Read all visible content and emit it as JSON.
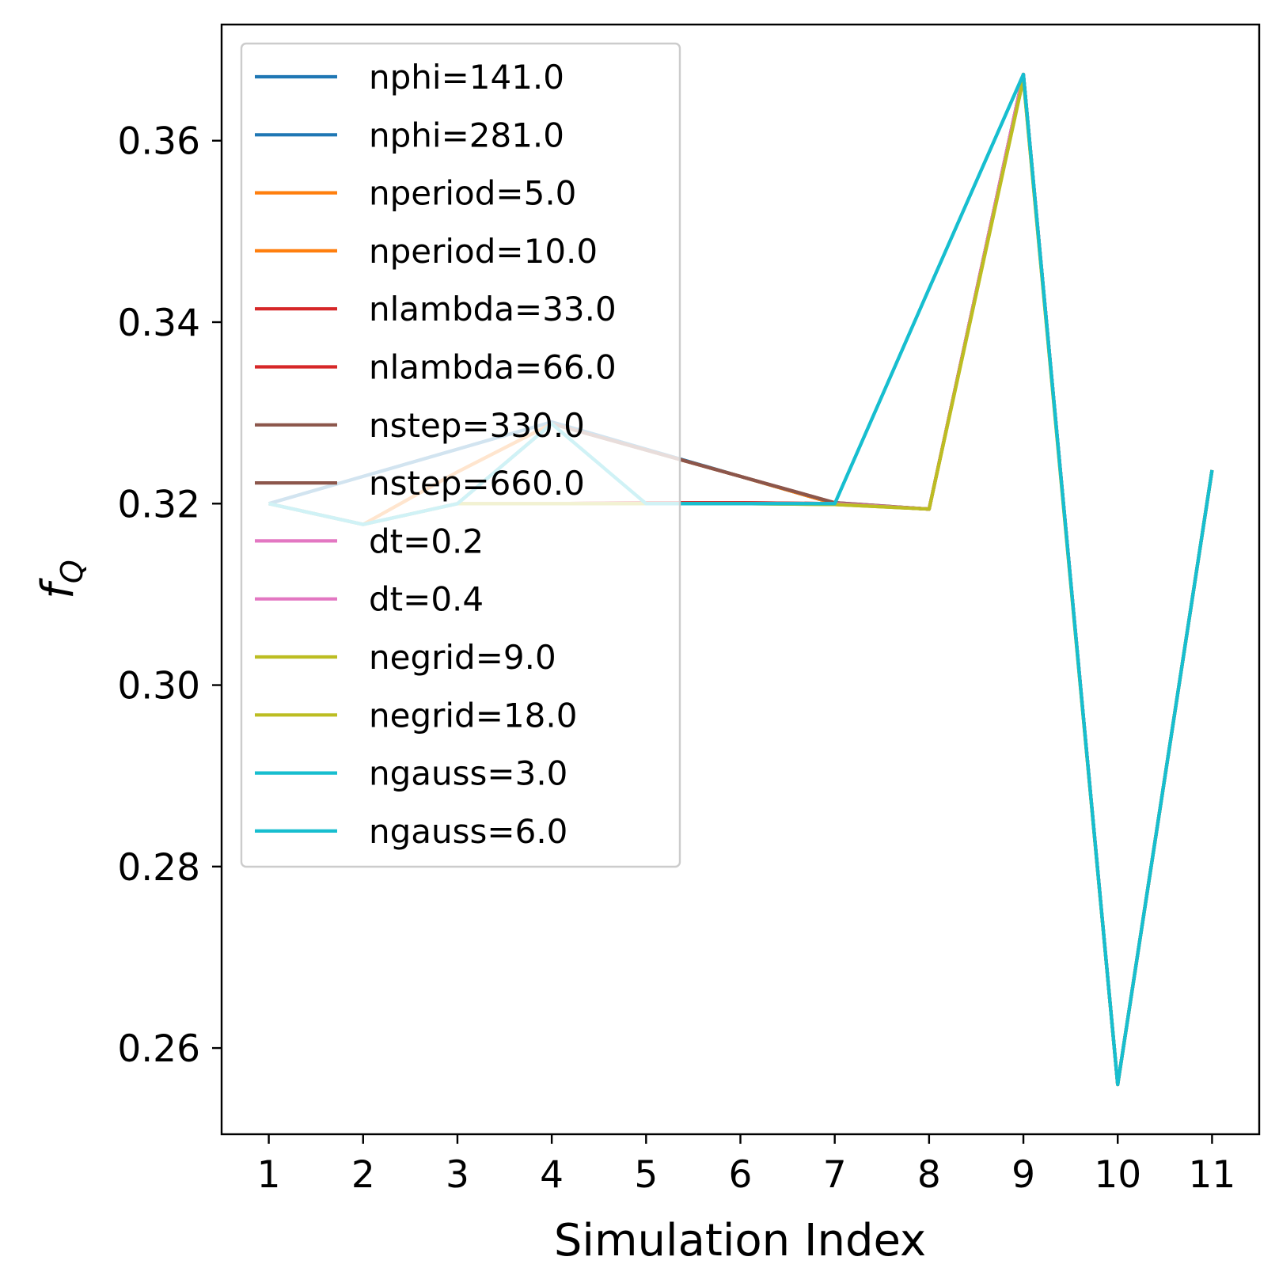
{
  "chart_data": {
    "type": "line",
    "title": "",
    "xlabel": "Simulation Index",
    "ylabel": "f",
    "ylabel_subscript": "Q",
    "xlim": [
      0.5,
      11.5
    ],
    "ylim": [
      0.2505,
      0.3728
    ],
    "x_ticks": [
      1,
      2,
      3,
      4,
      5,
      6,
      7,
      8,
      9,
      10,
      11
    ],
    "x_tick_labels": [
      "1",
      "2",
      "3",
      "4",
      "5",
      "6",
      "7",
      "8",
      "9",
      "10",
      "11"
    ],
    "y_ticks": [
      0.26,
      0.28,
      0.3,
      0.32,
      0.34,
      0.36
    ],
    "y_tick_labels": [
      "0.26",
      "0.28",
      "0.30",
      "0.32",
      "0.34",
      "0.36"
    ],
    "grid": false,
    "legend_position": "upper-left",
    "x": [
      1,
      2,
      3,
      4,
      5,
      6,
      7,
      8,
      9,
      10,
      11
    ],
    "series": [
      {
        "name": "nphi=141.0",
        "color": "#1f77b4",
        "values": [
          0.32,
          0.323,
          0.326,
          0.329,
          0.326,
          0.323,
          0.32,
          0.3194,
          0.3673,
          0.256,
          0.3237
        ]
      },
      {
        "name": "nphi=281.0",
        "color": "#1f77b4",
        "values": [
          0.32,
          0.323,
          0.326,
          0.329,
          0.326,
          0.323,
          0.32,
          0.3194,
          0.3673,
          0.256,
          0.3237
        ]
      },
      {
        "name": "nperiod=5.0",
        "color": "#ff7f0e",
        "values": [
          0.32,
          0.3177,
          0.3235,
          0.3288,
          0.3259,
          0.323,
          0.32,
          0.3194,
          0.3673,
          0.256,
          0.3237
        ]
      },
      {
        "name": "nperiod=10.0",
        "color": "#ff7f0e",
        "values": [
          0.32,
          0.3177,
          0.3235,
          0.3288,
          0.3259,
          0.323,
          0.32,
          0.3194,
          0.3673,
          0.256,
          0.3237
        ]
      },
      {
        "name": "nlambda=33.0",
        "color": "#d62728",
        "values": [
          0.32,
          0.3177,
          0.32,
          0.32,
          0.3201,
          0.3201,
          0.32,
          0.3194,
          0.3673,
          0.256,
          0.3237
        ]
      },
      {
        "name": "nlambda=66.0",
        "color": "#d62728",
        "values": [
          0.32,
          0.3177,
          0.32,
          0.32,
          0.3201,
          0.3201,
          0.32,
          0.3194,
          0.3673,
          0.256,
          0.3237
        ]
      },
      {
        "name": "nstep=330.0",
        "color": "#8c564b",
        "values": [
          0.32,
          0.3177,
          0.32,
          0.3288,
          0.3259,
          0.323,
          0.3201,
          0.3194,
          0.3673,
          0.256,
          0.3237
        ]
      },
      {
        "name": "nstep=660.0",
        "color": "#8c564b",
        "values": [
          0.32,
          0.3177,
          0.32,
          0.3288,
          0.3259,
          0.323,
          0.3201,
          0.3194,
          0.3673,
          0.256,
          0.3237
        ]
      },
      {
        "name": "dt=0.2",
        "color": "#e377c2",
        "values": [
          0.32,
          0.3177,
          0.32,
          0.32,
          0.32,
          0.32,
          0.32,
          0.3194,
          0.3673,
          0.256,
          0.3237
        ]
      },
      {
        "name": "dt=0.4",
        "color": "#e377c2",
        "values": [
          0.32,
          0.3177,
          0.32,
          0.32,
          0.32,
          0.32,
          0.32,
          0.3194,
          0.3673,
          0.256,
          0.3237
        ]
      },
      {
        "name": "negrid=9.0",
        "color": "#bcbd22",
        "values": [
          0.32,
          0.3177,
          0.32,
          0.32,
          0.32,
          0.32,
          0.3199,
          0.3194,
          0.3668,
          0.256,
          0.3237
        ]
      },
      {
        "name": "negrid=18.0",
        "color": "#bcbd22",
        "values": [
          0.32,
          0.3177,
          0.32,
          0.32,
          0.32,
          0.32,
          0.3199,
          0.3194,
          0.3668,
          0.256,
          0.3237
        ]
      },
      {
        "name": "ngauss=3.0",
        "color": "#17becf",
        "values": [
          0.32,
          0.3177,
          0.32,
          0.3288,
          0.32,
          0.32,
          0.32,
          0.3437,
          0.3673,
          0.256,
          0.3237
        ]
      },
      {
        "name": "ngauss=6.0",
        "color": "#17becf",
        "values": [
          0.32,
          0.3177,
          0.32,
          0.3288,
          0.32,
          0.32,
          0.32,
          0.3437,
          0.3673,
          0.256,
          0.3237
        ]
      }
    ]
  }
}
